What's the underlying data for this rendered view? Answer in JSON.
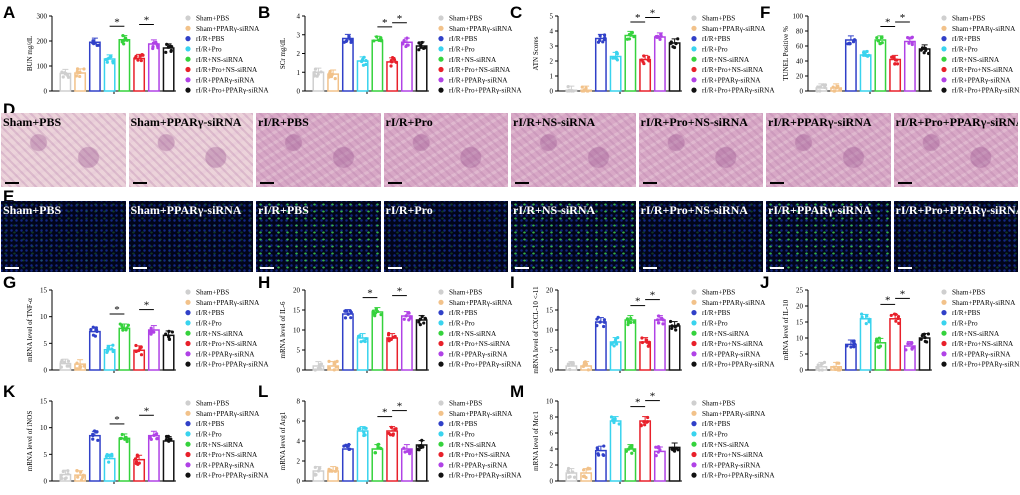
{
  "panel_letters": {
    "A": "A",
    "B": "B",
    "C": "C",
    "F": "F",
    "D": "D",
    "E": "E",
    "G": "G",
    "H": "H",
    "I": "I",
    "J": "J",
    "K": "K",
    "L": "L",
    "M": "M"
  },
  "legend_items": [
    {
      "label": "Sham+PBS",
      "color": "#cfcfcf"
    },
    {
      "label": "Sham+PPARγ-siRNA",
      "color": "#f2c28a"
    },
    {
      "label": "rI/R+PBS",
      "color": "#3040c8"
    },
    {
      "label": "rI/R+Pro",
      "color": "#39d3ee"
    },
    {
      "label": "rI/R+NS-siRNA",
      "color": "#35d23c"
    },
    {
      "label": "rI/R+Pro+NS-siRNA",
      "color": "#e8202a"
    },
    {
      "label": "rI/R+PPARγ-siRNA",
      "color": "#b042e6"
    },
    {
      "label": "rI/R+Pro+PPARγ-siRNA",
      "color": "#111111"
    }
  ],
  "he_labels": [
    "Sham+PBS",
    "Sham+PPARγ-siRNA",
    "rI/R+PBS",
    "rI/R+Pro",
    "rI/R+NS-siRNA",
    "rI/R+Pro+NS-siRNA",
    "rI/R+PPARγ-siRNA",
    "rI/R+Pro+PPARγ-siRNA"
  ],
  "tunel_labels": [
    "Sham+PBS",
    "Sham+PPARγ-siRNA",
    "rI/R+PBS",
    "rI/R+Pro",
    "rI/R+NS-siRNA",
    "rI/R+Pro+NS-siRNA",
    "rI/R+PPARγ-siRNA",
    "rI/R+Pro+PPARγ-siRNA"
  ],
  "significance_mark": "*",
  "chart_data": [
    {
      "id": "A",
      "type": "bar",
      "ylabel": "BUN mg/dL",
      "ylim": [
        0,
        300
      ],
      "yticks": [
        0,
        100,
        200,
        300
      ],
      "values": [
        70,
        72,
        195,
        128,
        205,
        130,
        188,
        172
      ],
      "sig_pairs": [
        [
          3,
          4
        ],
        [
          5,
          6
        ]
      ]
    },
    {
      "id": "B",
      "type": "bar",
      "ylabel": "SCr mg/dL",
      "ylim": [
        0,
        4
      ],
      "yticks": [
        0,
        1,
        2,
        3,
        4
      ],
      "values": [
        1.0,
        0.9,
        2.8,
        1.6,
        2.7,
        1.55,
        2.6,
        2.4
      ],
      "sig_pairs": [
        [
          4,
          5
        ],
        [
          5,
          6
        ]
      ]
    },
    {
      "id": "C",
      "type": "bar",
      "ylabel": "ATN Scores",
      "ylim": [
        0,
        5
      ],
      "yticks": [
        0,
        1,
        2,
        3,
        4,
        5
      ],
      "values": [
        0.05,
        0.05,
        3.5,
        2.3,
        3.7,
        2.1,
        3.6,
        3.2
      ],
      "sig_pairs": [
        [
          4,
          5
        ],
        [
          5,
          6
        ]
      ]
    },
    {
      "id": "F",
      "type": "bar",
      "ylabel": "TUNEL Positive %",
      "ylim": [
        0,
        100
      ],
      "yticks": [
        0,
        20,
        40,
        60,
        80,
        100
      ],
      "values": [
        4,
        4,
        68,
        48,
        68,
        42,
        66,
        56
      ],
      "sig_pairs": [
        [
          4,
          5
        ],
        [
          5,
          6
        ]
      ]
    },
    {
      "id": "G",
      "type": "bar",
      "ylabel": "mRNA level of TNF-α",
      "ylim": [
        0,
        15
      ],
      "yticks": [
        0,
        5,
        10,
        15
      ],
      "values": [
        1.2,
        1.1,
        7.2,
        3.8,
        7.8,
        3.7,
        7.5,
        6.5
      ],
      "sig_pairs": [
        [
          3,
          4
        ],
        [
          5,
          6
        ]
      ]
    },
    {
      "id": "H",
      "type": "bar",
      "ylabel": "mRNA level of IL-6",
      "ylim": [
        0,
        20
      ],
      "yticks": [
        0,
        5,
        10,
        15,
        20
      ],
      "values": [
        1.0,
        1.0,
        14.0,
        8.0,
        14.5,
        8.0,
        13.5,
        12.5
      ],
      "sig_pairs": [
        [
          3,
          4
        ],
        [
          5,
          6
        ]
      ]
    },
    {
      "id": "I",
      "type": "bar",
      "ylabel": "mRNA level of CXCL-10 <-11",
      "ylim": [
        0,
        20
      ],
      "yticks": [
        0,
        5,
        10,
        15,
        20
      ],
      "values": [
        1.0,
        1.0,
        12.0,
        7.0,
        12.5,
        7.0,
        12.5,
        11.0
      ],
      "sig_pairs": [
        [
          4,
          5
        ],
        [
          5,
          6
        ]
      ]
    },
    {
      "id": "J",
      "type": "bar",
      "ylabel": "mRNA level of IL-10",
      "ylim": [
        0,
        25
      ],
      "yticks": [
        0,
        5,
        10,
        15,
        20,
        25
      ],
      "values": [
        1.0,
        1.0,
        8.0,
        16.0,
        8.5,
        16.0,
        7.5,
        10.0
      ],
      "sig_pairs": [
        [
          4,
          5
        ],
        [
          5,
          6
        ]
      ]
    },
    {
      "id": "K",
      "type": "bar",
      "ylabel": "mRNA level of iNOS",
      "ylim": [
        0,
        15
      ],
      "yticks": [
        0,
        5,
        10,
        15
      ],
      "values": [
        1.2,
        1.1,
        8.5,
        4.2,
        8.0,
        4.0,
        8.5,
        7.5
      ],
      "sig_pairs": [
        [
          3,
          4
        ],
        [
          5,
          6
        ]
      ]
    },
    {
      "id": "L",
      "type": "bar",
      "ylabel": "mRNA level of Arg1",
      "ylim": [
        0,
        8
      ],
      "yticks": [
        0,
        2,
        4,
        6,
        8
      ],
      "values": [
        1.0,
        1.0,
        3.2,
        5.0,
        3.2,
        5.0,
        3.2,
        3.6
      ],
      "sig_pairs": [
        [
          4,
          5
        ],
        [
          5,
          6
        ]
      ]
    },
    {
      "id": "M",
      "type": "bar",
      "ylabel": "mRNA level of Mrc1",
      "ylim": [
        0,
        10
      ],
      "yticks": [
        0,
        2,
        4,
        6,
        8,
        10
      ],
      "values": [
        1.0,
        1.0,
        3.8,
        7.5,
        4.0,
        7.5,
        3.7,
        4.2
      ],
      "sig_pairs": [
        [
          4,
          5
        ],
        [
          5,
          6
        ]
      ]
    }
  ]
}
